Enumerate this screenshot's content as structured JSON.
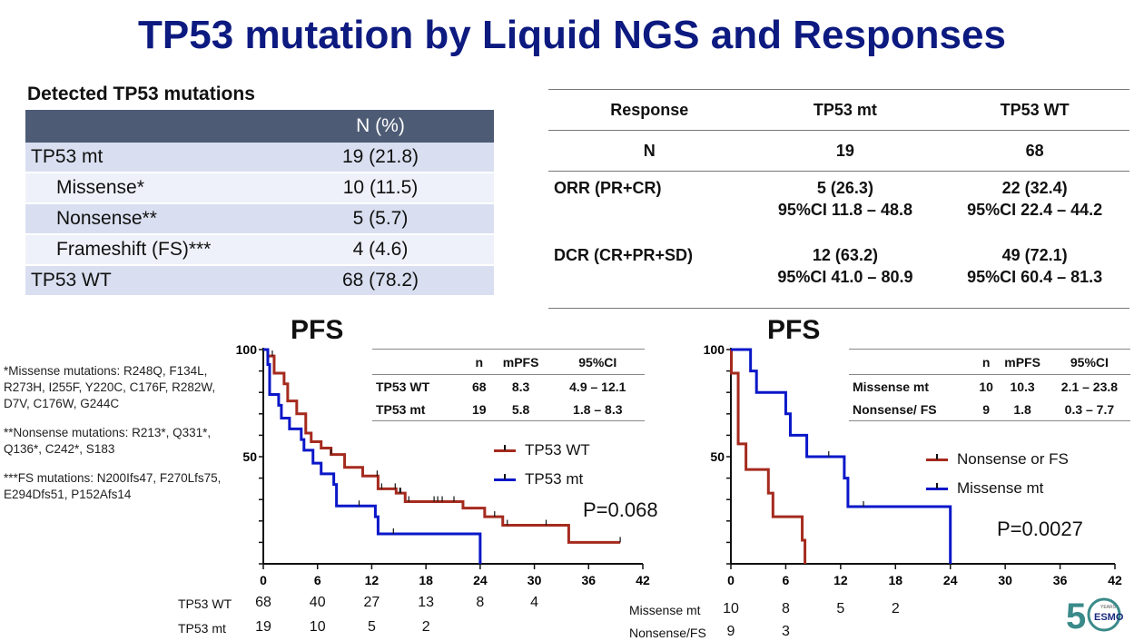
{
  "title": "TP53 mutation by Liquid NGS and Responses",
  "mutations": {
    "heading": "Detected TP53 mutations",
    "col_header": "N (%)",
    "rows": [
      {
        "label": "TP53 mt",
        "value": "19 (21.8)"
      },
      {
        "label": "Missense*",
        "value": "10 (11.5)"
      },
      {
        "label": "Nonsense**",
        "value": "5 (5.7)"
      },
      {
        "label": "Frameshift (FS)***",
        "value": "4 (4.6)"
      },
      {
        "label": "TP53 WT",
        "value": "68 (78.2)"
      }
    ]
  },
  "response": {
    "headers": [
      "Response",
      "TP53 mt",
      "TP53 WT"
    ],
    "n_row": [
      "N",
      "19",
      "68"
    ],
    "orr": {
      "label": "ORR (PR+CR)",
      "mt": "5 (26.3)",
      "mt_ci": "95%CI 11.8 – 48.8",
      "wt": "22 (32.4)",
      "wt_ci": "95%CI 22.4 – 44.2"
    },
    "dcr": {
      "label": "DCR (CR+PR+SD)",
      "mt": "12 (63.2)",
      "mt_ci": "95%CI 41.0 – 80.9",
      "wt": "49 (72.1)",
      "wt_ci": "95%CI 60.4 – 81.3"
    }
  },
  "notes": [
    "*Missense mutations: R248Q, F134L, R273H, I255F, Y220C, C176F, R282W, D7V, C176W, G244C",
    "**Nonsense mutations: R213*, Q331*, Q136*, C242*, S183",
    "***FS mutations: N200Ifs47, F270Lfs75, E294Dfs51, P152Afs14"
  ],
  "logo_text": "50 YEARS ESMO",
  "chart_data": [
    {
      "type": "line",
      "title": "PFS",
      "xlim": [
        0,
        42
      ],
      "ylim": [
        0,
        100
      ],
      "xticks": [
        0,
        6,
        12,
        18,
        24,
        30,
        36,
        42
      ],
      "yticks_labeled": [
        50,
        100
      ],
      "inset_table": {
        "headers": [
          "",
          "n",
          "mPFS",
          "95%CI"
        ],
        "rows": [
          [
            "TP53 WT",
            "68",
            "8.3",
            "4.9 – 12.1"
          ],
          [
            "TP53 mt",
            "19",
            "5.8",
            "1.8 –  8.3"
          ]
        ]
      },
      "p_value": "P=0.068",
      "series": [
        {
          "name": "TP53 WT",
          "color": "#a52a1e",
          "steps": [
            [
              0,
              100
            ],
            [
              0.5,
              97
            ],
            [
              1.2,
              89
            ],
            [
              2.3,
              84
            ],
            [
              2.7,
              76
            ],
            [
              3.7,
              70
            ],
            [
              4.7,
              61
            ],
            [
              5.3,
              57
            ],
            [
              6.4,
              54
            ],
            [
              7.5,
              51
            ],
            [
              9,
              45
            ],
            [
              11,
              41
            ],
            [
              12.7,
              35
            ],
            [
              14.7,
              33
            ],
            [
              15.7,
              29
            ],
            [
              22.1,
              26
            ],
            [
              24.5,
              22
            ],
            [
              26.5,
              18
            ],
            [
              33.8,
              10
            ]
          ],
          "end": 39.5,
          "censored": [
            1,
            7.5,
            12.6,
            13.1,
            14.6,
            15.1,
            15.2,
            16.1,
            18.9,
            19.3,
            19.8,
            21.1,
            25.6,
            27,
            31.3,
            39.5
          ]
        },
        {
          "name": "TP53 mt",
          "color": "#0a17c8",
          "steps": [
            [
              0,
              100
            ],
            [
              0.5,
              93
            ],
            [
              0.7,
              79
            ],
            [
              1.7,
              74
            ],
            [
              2,
              68
            ],
            [
              2.9,
              63
            ],
            [
              4.2,
              58
            ],
            [
              4.5,
              53
            ],
            [
              5.5,
              47
            ],
            [
              6.4,
              42
            ],
            [
              7.8,
              37
            ],
            [
              8.1,
              27
            ],
            [
              12.4,
              22
            ],
            [
              12.7,
              14
            ],
            [
              24,
              0
            ]
          ],
          "end": 24,
          "censored": [
            10.6,
            14.4
          ]
        }
      ],
      "at_risk": {
        "x": [
          0,
          6,
          12,
          18,
          24,
          30
        ],
        "rows": [
          {
            "label": "TP53 WT",
            "values": [
              "68",
              "40",
              "27",
              "13",
              "8",
              "4"
            ]
          },
          {
            "label": "TP53 mt",
            "values": [
              "19",
              "10",
              "5",
              "2"
            ]
          }
        ]
      }
    },
    {
      "type": "line",
      "title": "PFS",
      "xlim": [
        0,
        42
      ],
      "ylim": [
        0,
        100
      ],
      "xticks": [
        0,
        6,
        12,
        18,
        24,
        30,
        36,
        42
      ],
      "yticks_labeled": [
        50,
        100
      ],
      "inset_table": {
        "headers": [
          "",
          "n",
          "mPFS",
          "95%CI"
        ],
        "rows": [
          [
            "Missense mt",
            "10",
            "10.3",
            "2.1 – 23.8"
          ],
          [
            "Nonsense/ FS",
            "9",
            "1.8",
            "0.3 – 7.7"
          ]
        ]
      },
      "p_value": "P=0.0027",
      "series": [
        {
          "name": "Nonsense or FS",
          "color": "#a52a1e",
          "steps": [
            [
              0,
              100
            ],
            [
              0.05,
              89
            ],
            [
              0.8,
              56
            ],
            [
              1.65,
              44
            ],
            [
              4.1,
              33
            ],
            [
              4.6,
              22
            ],
            [
              7.8,
              11
            ],
            [
              8.1,
              0
            ]
          ],
          "end": 8.1,
          "censored": []
        },
        {
          "name": "Missense mt",
          "color": "#0a17c8",
          "steps": [
            [
              0,
              100
            ],
            [
              2.15,
              90
            ],
            [
              2.8,
              80
            ],
            [
              6,
              70
            ],
            [
              6.5,
              60
            ],
            [
              8.3,
              50
            ],
            [
              12.4,
              40
            ],
            [
              12.8,
              26.7
            ],
            [
              24,
              0
            ]
          ],
          "end": 24,
          "censored": [
            10.7,
            14.5
          ]
        }
      ],
      "at_risk": {
        "x": [
          0,
          6,
          12,
          18
        ],
        "rows": [
          {
            "label": "Missense mt",
            "values": [
              "10",
              "8",
              "5",
              "2"
            ]
          },
          {
            "label": "Nonsense/FS",
            "values": [
              "9",
              "3"
            ]
          }
        ]
      }
    }
  ]
}
